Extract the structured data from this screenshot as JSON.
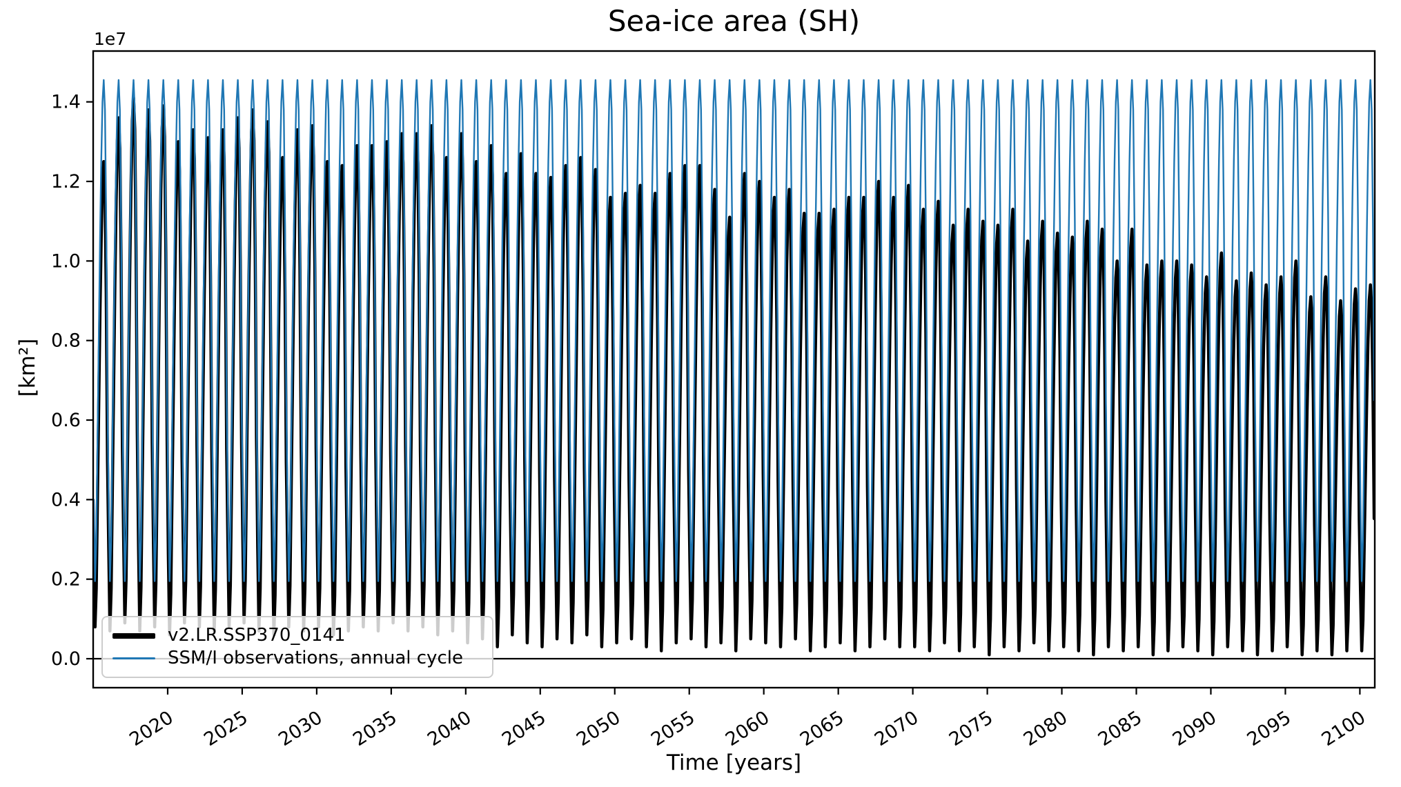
{
  "title": "Sea-ice area (SH)",
  "axes": {
    "x_label": "Time [years]",
    "y_label": "[km²]",
    "y_offset_text": "1e7",
    "x_tick_labels": [
      "2020",
      "2025",
      "2030",
      "2035",
      "2040",
      "2045",
      "2050",
      "2055",
      "2060",
      "2065",
      "2070",
      "2075",
      "2080",
      "2085",
      "2090",
      "2095",
      "2100"
    ],
    "y_tick_labels": [
      "0.0",
      "0.2",
      "0.4",
      "0.6",
      "0.8",
      "1.0",
      "1.2",
      "1.4"
    ]
  },
  "legend": {
    "entries": [
      {
        "label": "v2.LR.SSP370_0141",
        "color": "#000000"
      },
      {
        "label": "SSM/I observations, annual cycle",
        "color": "#1f77b4"
      }
    ]
  },
  "chart_data": {
    "type": "line",
    "title": "Sea-ice area (SH)",
    "xlabel": "Time [years]",
    "ylabel": "[km2]",
    "y_scale_factor": "1e7",
    "units": "1e7 km^2",
    "grid": false,
    "legend_position": "lower left",
    "x_range": [
      2015.0,
      2101.0
    ],
    "y_range_display": [
      -0.0728,
      1.5278
    ],
    "x_tick_years": [
      2020,
      2025,
      2030,
      2035,
      2040,
      2045,
      2050,
      2055,
      2060,
      2065,
      2070,
      2075,
      2080,
      2085,
      2090,
      2095,
      2100
    ],
    "y_tick_values": [
      0.0,
      0.2,
      0.4,
      0.6,
      0.8,
      1.0,
      1.2,
      1.4
    ],
    "zero_line": 0.0,
    "start_year": 2015,
    "end_year": 2100,
    "series": [
      {
        "name": "v2.LR.SSP370_0141",
        "color": "#000000",
        "linewidth": 4.5,
        "sampling": "monthly",
        "annual_max": [
          1.25,
          1.36,
          1.41,
          1.38,
          1.39,
          1.3,
          1.33,
          1.31,
          1.33,
          1.36,
          1.38,
          1.35,
          1.26,
          1.33,
          1.34,
          1.25,
          1.24,
          1.29,
          1.29,
          1.3,
          1.32,
          1.32,
          1.34,
          1.26,
          1.32,
          1.25,
          1.29,
          1.22,
          1.27,
          1.22,
          1.21,
          1.24,
          1.26,
          1.23,
          1.16,
          1.17,
          1.19,
          1.17,
          1.22,
          1.24,
          1.24,
          1.18,
          1.11,
          1.22,
          1.2,
          1.16,
          1.18,
          1.12,
          1.12,
          1.13,
          1.16,
          1.16,
          1.2,
          1.16,
          1.19,
          1.13,
          1.15,
          1.09,
          1.13,
          1.1,
          1.09,
          1.13,
          1.05,
          1.1,
          1.07,
          1.06,
          1.1,
          1.08,
          1.0,
          1.08,
          0.99,
          1.0,
          1.0,
          0.99,
          0.96,
          1.02,
          0.95,
          0.97,
          0.94,
          0.96,
          1.0,
          0.91,
          0.96,
          0.9,
          0.93,
          0.94
        ],
        "annual_min": [
          0.08,
          0.07,
          0.09,
          0.07,
          0.08,
          0.06,
          0.09,
          0.08,
          0.07,
          0.08,
          0.09,
          0.07,
          0.06,
          0.08,
          0.07,
          0.08,
          0.06,
          0.07,
          0.08,
          0.07,
          0.09,
          0.07,
          0.08,
          0.06,
          0.07,
          0.04,
          0.05,
          0.03,
          0.06,
          0.04,
          0.03,
          0.05,
          0.04,
          0.06,
          0.03,
          0.04,
          0.05,
          0.03,
          0.02,
          0.04,
          0.05,
          0.03,
          0.04,
          0.02,
          0.05,
          0.04,
          0.03,
          0.05,
          0.02,
          0.03,
          0.04,
          0.02,
          0.03,
          0.05,
          0.03,
          0.03,
          0.02,
          0.04,
          0.02,
          0.03,
          0.01,
          0.03,
          0.02,
          0.04,
          0.02,
          0.03,
          0.02,
          0.01,
          0.03,
          0.02,
          0.03,
          0.01,
          0.02,
          0.03,
          0.02,
          0.01,
          0.03,
          0.02,
          0.01,
          0.02,
          0.03,
          0.01,
          0.02,
          0.01,
          0.02,
          0.02
        ]
      },
      {
        "name": "SSM/I observations, annual cycle",
        "color": "#1f77b4",
        "linewidth": 2.4,
        "sampling": "monthly",
        "repeats_every_year": true,
        "monthly_cycle": [
          0.4,
          0.195,
          0.3,
          0.55,
          0.8,
          1.05,
          1.25,
          1.4,
          1.455,
          1.38,
          1.1,
          0.65
        ],
        "annual_max": 1.455,
        "annual_min": 0.195
      }
    ]
  }
}
